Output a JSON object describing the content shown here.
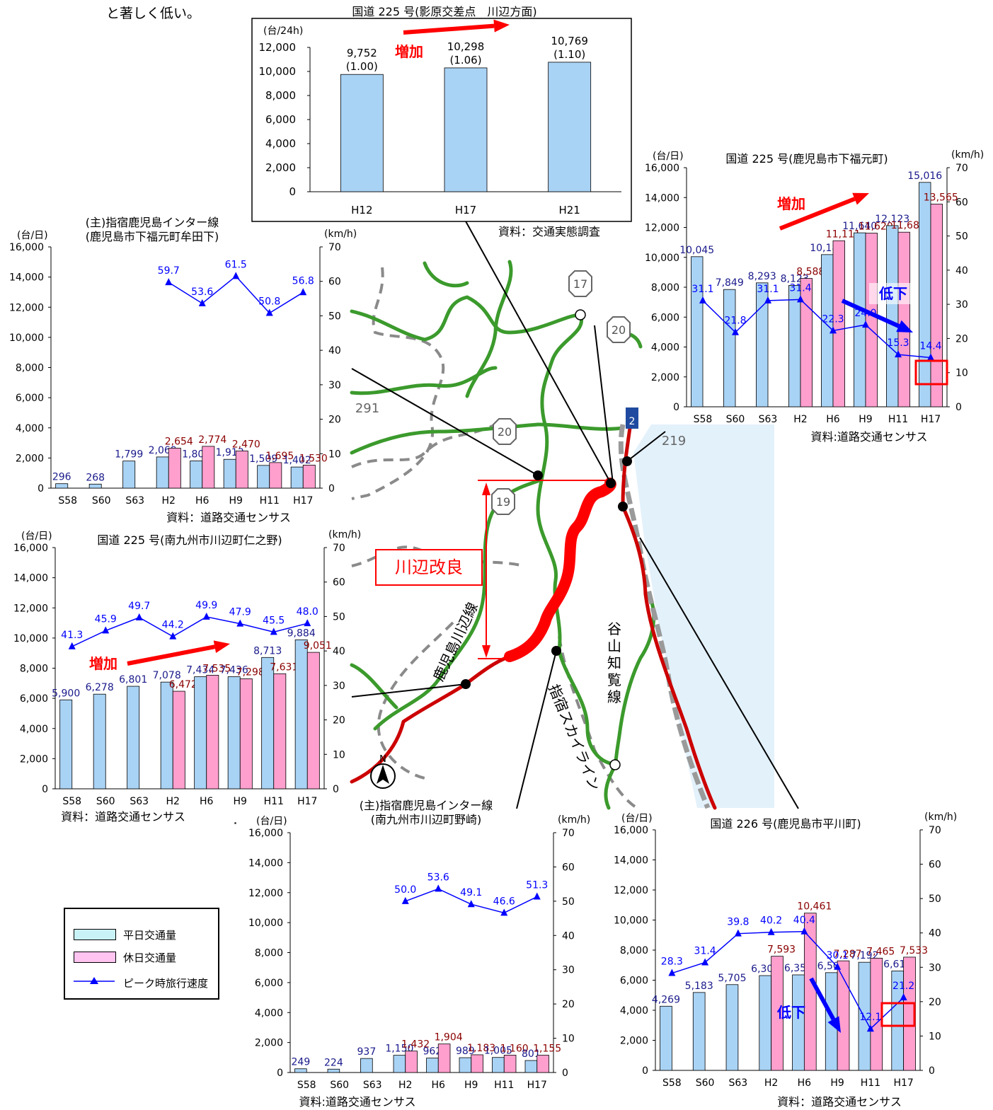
{
  "header_text": "と著しく低い。",
  "legend": {
    "weekday": "平日交通量",
    "holiday": "休日交通量",
    "speed": "ピーク時旅行速度",
    "colors": {
      "weekday": "#a9d3f5",
      "holiday": "#ff9fce",
      "speed": "#0000ff",
      "weekday_border": "#000000"
    }
  },
  "map": {
    "labels": {
      "route291": "291",
      "route19": "19",
      "route20a": "20",
      "route20b": "20",
      "route17": "17",
      "route219": "219",
      "route225": "2",
      "kawanabe_improvement": "川辺改良",
      "kagoshima_kawanabe_line": "鹿児島川辺線",
      "ibusuki_skyline": "指宿スカイライン",
      "taniyama_chiran_line": "谷山知覧線",
      "north": "N"
    },
    "colors": {
      "road": "#3b9a2c",
      "improved": "#ff0000",
      "national_route": "#cc0000",
      "sea": "#e3f1fb"
    }
  },
  "chart_data": [
    {
      "id": "c_top",
      "type": "bar",
      "title": "国道 225 号(影原交差点　川辺方面)",
      "ylabel": "(台/24h)",
      "source": "資料：交通実態調査",
      "categories": [
        "H12",
        "H17",
        "H21"
      ],
      "ylim": [
        0,
        12000
      ],
      "yticks": [
        "0",
        "2,000",
        "4,000",
        "6,000",
        "8,000",
        "10,000",
        "12,000"
      ],
      "series": [
        {
          "values": [
            9752,
            10298,
            10769
          ]
        }
      ],
      "value_labels": [
        "9,752",
        "10,298",
        "10,769"
      ],
      "ratio_labels": [
        "(1.00)",
        "(1.06)",
        "(1.10)"
      ],
      "annotation": "増加"
    },
    {
      "id": "c_ne",
      "type": "bar",
      "title": "国道 225 号(鹿児島市下福元町)",
      "ylabel_left": "(台/日)",
      "ylabel_right": "(km/h)",
      "source": "資料:道路交通センサス",
      "categories": [
        "S58",
        "S60",
        "S63",
        "H2",
        "H6",
        "H9",
        "H11",
        "H17"
      ],
      "ylim": [
        0,
        16000
      ],
      "y2lim": [
        0,
        70
      ],
      "yticks": [
        "0",
        "2,000",
        "4,000",
        "6,000",
        "8,000",
        "10,000",
        "12,000",
        "14,000",
        "16,000"
      ],
      "y2ticks": [
        "0",
        "10",
        "20",
        "30",
        "40",
        "50",
        "60",
        "70"
      ],
      "series": [
        {
          "name": "平日交通量",
          "values": [
            10045,
            7849,
            8293,
            8123,
            10184,
            11640,
            12123,
            15016
          ],
          "labels": [
            "10,045",
            "7,849",
            "8,293",
            "8,123",
            "10,184",
            "11,640",
            "12,123",
            "15,016"
          ]
        },
        {
          "name": "休日交通量",
          "values": [
            null,
            null,
            null,
            8588,
            11111,
            11620,
            11683,
            13565
          ],
          "labels": [
            "",
            "",
            "",
            "8,588",
            "11,111",
            "11,620",
            "11,683",
            "13,565"
          ]
        },
        {
          "name": "ピーク時旅行速度",
          "values": [
            31.1,
            21.8,
            31.1,
            31.4,
            22.3,
            24.0,
            15.3,
            14.4
          ],
          "labels": [
            "31.1",
            "21.8",
            "31.1",
            "31.4",
            "22.3",
            "24.0",
            "15.3",
            "14.4"
          ]
        }
      ],
      "annotations": [
        "増加",
        "低下"
      ]
    },
    {
      "id": "c_nw",
      "type": "bar",
      "title": "(主)指宿鹿児島インター線",
      "subtitle": "(鹿児島市下福元町牟田下)",
      "ylabel_left": "(台/日)",
      "ylabel_right": "(km/h)",
      "source": "資料：道路交通センサス",
      "categories": [
        "S58",
        "S60",
        "S63",
        "H2",
        "H6",
        "H9",
        "H11",
        "H17"
      ],
      "ylim": [
        0,
        16000
      ],
      "y2lim": [
        0,
        70
      ],
      "yticks": [
        "0",
        "2,000",
        "4,000",
        "6,000",
        "8,000",
        "10,000",
        "12,000",
        "14,000",
        "16,000"
      ],
      "y2ticks": [
        "0",
        "10",
        "20",
        "30",
        "40",
        "50",
        "60",
        "70"
      ],
      "series": [
        {
          "name": "平日交通量",
          "values": [
            296,
            268,
            1799,
            2069,
            1809,
            1913,
            1509,
            1402
          ],
          "labels": [
            "296",
            "268",
            "1,799",
            "2,069",
            "1,809",
            "1,913",
            "1,509",
            "1,402"
          ]
        },
        {
          "name": "休日交通量",
          "values": [
            null,
            null,
            null,
            2654,
            2774,
            2470,
            1695,
            1530
          ],
          "labels": [
            "",
            "",
            "",
            "2,654",
            "2,774",
            "2,470",
            "1,695",
            "1,530"
          ]
        },
        {
          "name": "ピーク時旅行速度",
          "values": [
            null,
            null,
            null,
            59.7,
            53.6,
            61.5,
            50.8,
            56.8
          ],
          "labels": [
            "",
            "",
            "",
            "59.7",
            "53.6",
            "61.5",
            "50.8",
            "56.8"
          ]
        }
      ]
    },
    {
      "id": "c_w",
      "type": "bar",
      "title": "国道 225 号(南九州市川辺町仁之野)",
      "ylabel_left": "(台/日)",
      "ylabel_right": "(km/h)",
      "source": "資料：道路交通センサス",
      "categories": [
        "S58",
        "S60",
        "S63",
        "H2",
        "H6",
        "H9",
        "H11",
        "H17"
      ],
      "ylim": [
        0,
        16000
      ],
      "y2lim": [
        0,
        70
      ],
      "yticks": [
        "0",
        "2,000",
        "4,000",
        "6,000",
        "8,000",
        "10,000",
        "12,000",
        "14,000",
        "16,000"
      ],
      "y2ticks": [
        "0",
        "10",
        "20",
        "30",
        "40",
        "50",
        "60",
        "70"
      ],
      "series": [
        {
          "name": "平日交通量",
          "values": [
            5900,
            6278,
            6801,
            7078,
            7434,
            7436,
            8713,
            9884
          ],
          "labels": [
            "5,900",
            "6,278",
            "6,801",
            "7,078",
            "7,434",
            "7,436",
            "8,713",
            "9,884"
          ]
        },
        {
          "name": "休日交通量",
          "values": [
            null,
            null,
            null,
            6472,
            7535,
            7298,
            7631,
            9051
          ],
          "labels": [
            "",
            "",
            "",
            "6,472",
            "7,535",
            "7,298",
            "7,631",
            "9,051"
          ]
        },
        {
          "name": "ピーク時旅行速度",
          "values": [
            41.3,
            45.9,
            49.7,
            44.2,
            49.9,
            47.9,
            45.5,
            48.0
          ],
          "labels": [
            "41.3",
            "45.9",
            "49.7",
            "44.2",
            "49.9",
            "47.9",
            "45.5",
            "48.0"
          ]
        }
      ],
      "annotation": "増加"
    },
    {
      "id": "c_s",
      "type": "bar",
      "title": "(主)指宿鹿児島インター線",
      "subtitle": "(南九州市川辺町野崎)",
      "ylabel_left": "(台/日)",
      "ylabel_right": "(km/h)",
      "source": "資料:道路交通センサス",
      "categories": [
        "S58",
        "S60",
        "S63",
        "H2",
        "H6",
        "H9",
        "H11",
        "H17"
      ],
      "ylim": [
        0,
        16000
      ],
      "y2lim": [
        0,
        70
      ],
      "yticks": [
        "0",
        "2,000",
        "4,000",
        "6,000",
        "8,000",
        "10,000",
        "12,000",
        "14,000",
        "16,000"
      ],
      "y2ticks": [
        "0",
        "10",
        "20",
        "30",
        "40",
        "50",
        "60",
        "70"
      ],
      "series": [
        {
          "name": "平日交通量",
          "values": [
            249,
            224,
            937,
            1150,
            962,
            989,
            1005,
            801
          ],
          "labels": [
            "249",
            "224",
            "937",
            "1,150",
            "962",
            "989",
            "1,005",
            "801"
          ]
        },
        {
          "name": "休日交通量",
          "values": [
            null,
            null,
            null,
            1432,
            1904,
            1183,
            1160,
            1155
          ],
          "labels": [
            "",
            "",
            "",
            "1,432",
            "1,904",
            "1,183",
            "1,160",
            "1,155"
          ]
        },
        {
          "name": "ピーク時旅行速度",
          "values": [
            null,
            null,
            null,
            50.0,
            53.6,
            49.1,
            46.6,
            51.3
          ],
          "labels": [
            "",
            "",
            "",
            "50.0",
            "53.6",
            "49.1",
            "46.6",
            "51.3"
          ]
        }
      ]
    },
    {
      "id": "c_se",
      "type": "bar",
      "title": "国道 226 号(鹿児島市平川町)",
      "ylabel_left": "(台/日)",
      "ylabel_right": "(km/h)",
      "source": "資料：道路交通センサス",
      "categories": [
        "S58",
        "S60",
        "S63",
        "H2",
        "H6",
        "H9",
        "H11",
        "H17"
      ],
      "ylim": [
        0,
        16000
      ],
      "y2lim": [
        0,
        70
      ],
      "yticks": [
        "0",
        "2,000",
        "4,000",
        "6,000",
        "8,000",
        "10,000",
        "12,000",
        "14,000",
        "16,000"
      ],
      "y2ticks": [
        "0",
        "10",
        "20",
        "30",
        "40",
        "50",
        "60",
        "70"
      ],
      "series": [
        {
          "name": "平日交通量",
          "values": [
            4269,
            5183,
            5705,
            6305,
            6354,
            6502,
            7192,
            6614
          ],
          "labels": [
            "4,269",
            "5,183",
            "5,705",
            "6,305",
            "6,354",
            "6,502",
            "7,192",
            "6,614"
          ]
        },
        {
          "name": "休日交通量",
          "values": [
            null,
            null,
            null,
            7593,
            10461,
            7287,
            7465,
            7533
          ],
          "labels": [
            "",
            "",
            "",
            "7,593",
            "10,461",
            "7,287",
            "7,465",
            "7,533"
          ]
        },
        {
          "name": "ピーク時旅行速度",
          "values": [
            28.3,
            31.4,
            39.8,
            40.2,
            40.4,
            30.1,
            12.1,
            21.2
          ],
          "labels": [
            "28.3",
            "31.4",
            "39.8",
            "40.2",
            "40.4",
            "30.1",
            "12.1",
            "21.2"
          ]
        }
      ],
      "annotation": "低下"
    }
  ]
}
